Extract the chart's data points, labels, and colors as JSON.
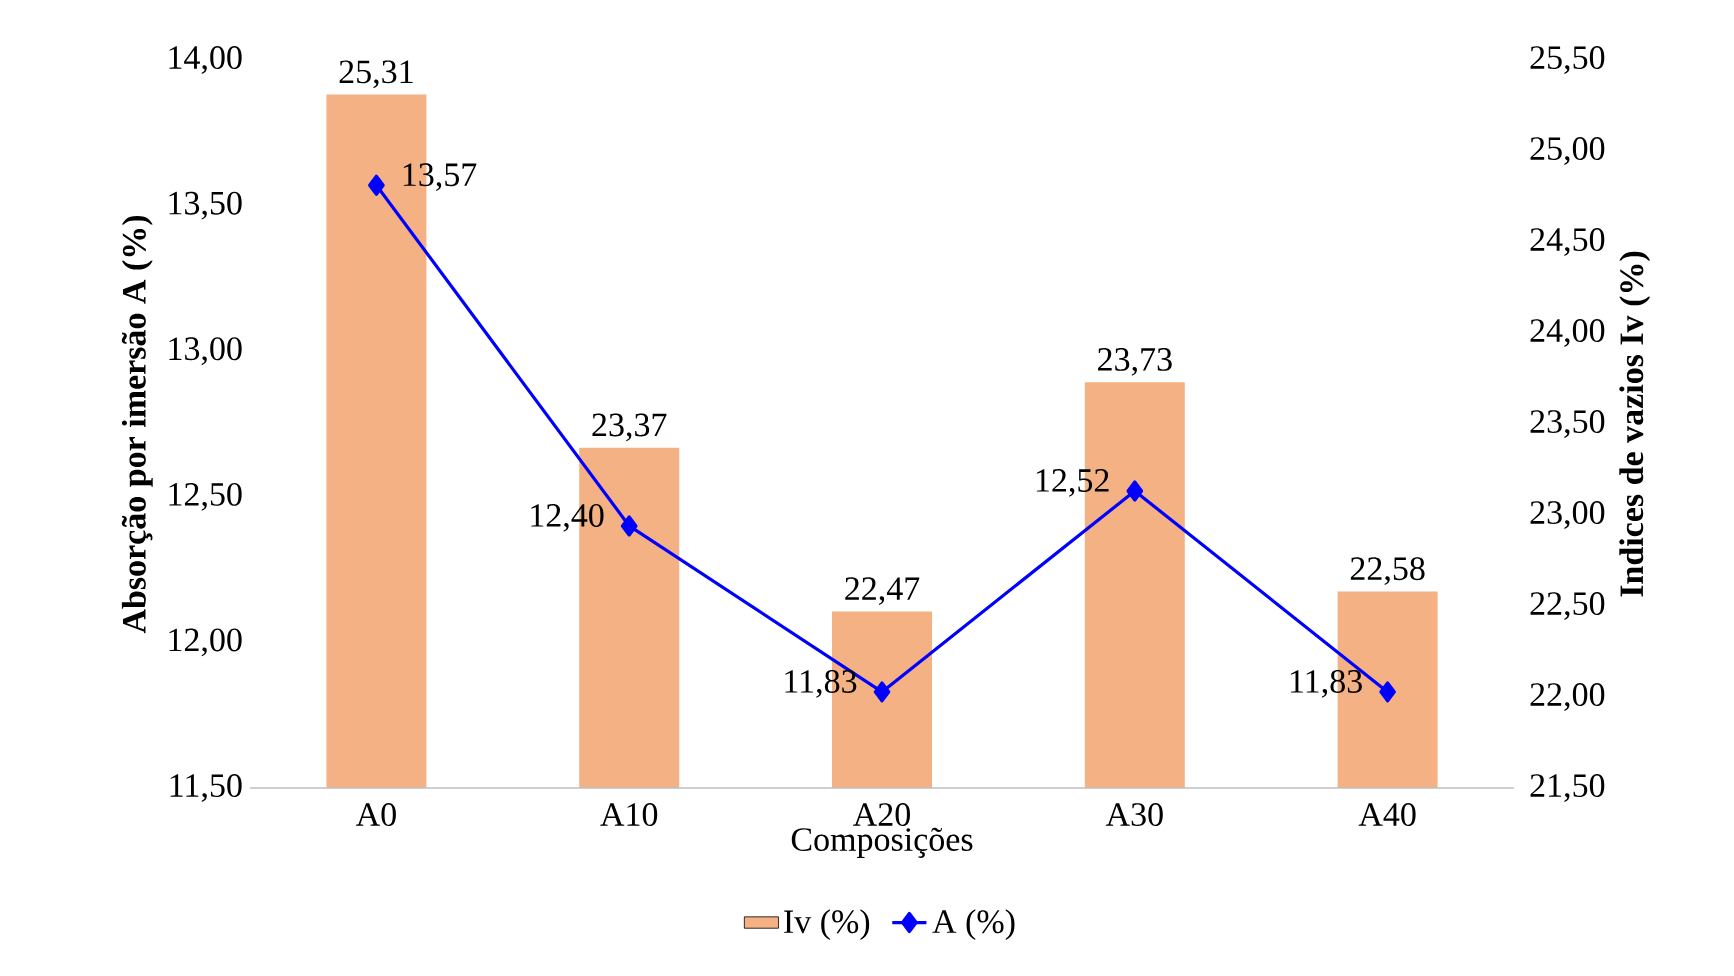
{
  "chart_data": {
    "type": "bar",
    "xlabel": "Composições",
    "ylabel": "Absorção por imersão A (%)",
    "y2label": "Indices de vazios Iv (%)",
    "categories": [
      "A0",
      "A10",
      "A20",
      "A30",
      "A40"
    ],
    "series": [
      {
        "name": "Iv (%)",
        "axis": "y2",
        "color": "#f4b183",
        "values": [
          25.31,
          23.37,
          22.47,
          23.73,
          22.58
        ],
        "value_labels": [
          "25,31",
          "23,37",
          "22,47",
          "23,73",
          "22,58"
        ]
      },
      {
        "name": "A (%)",
        "type": "line",
        "color": "#0000ff",
        "marker": "diamond",
        "line_style": "solid",
        "values": [
          13.57,
          12.4,
          11.83,
          12.52,
          11.83
        ],
        "value_labels": [
          "13,57",
          "12,40",
          "11,83",
          "12,52",
          "11,83"
        ]
      }
    ],
    "ylim": [
      11.5,
      14.0
    ],
    "yticks": [
      {
        "value": 11.5,
        "label": "11,50"
      },
      {
        "value": 12.0,
        "label": "12,00"
      },
      {
        "value": 12.5,
        "label": "12,50"
      },
      {
        "value": 13.0,
        "label": "13,00"
      },
      {
        "value": 13.5,
        "label": "13,50"
      },
      {
        "value": 14.0,
        "label": "14,00"
      }
    ],
    "y2lim": [
      21.5,
      25.5
    ],
    "y2ticks": [
      {
        "value": 21.5,
        "label": "21,50"
      },
      {
        "value": 22.0,
        "label": "22,00"
      },
      {
        "value": 22.5,
        "label": "22,50"
      },
      {
        "value": 23.0,
        "label": "23,00"
      },
      {
        "value": 23.5,
        "label": "23,50"
      },
      {
        "value": 24.0,
        "label": "24,00"
      },
      {
        "value": 24.5,
        "label": "24,50"
      },
      {
        "value": 25.0,
        "label": "25,00"
      },
      {
        "value": 25.5,
        "label": "25,50"
      }
    ],
    "legend": "bottom",
    "grid": false
  }
}
